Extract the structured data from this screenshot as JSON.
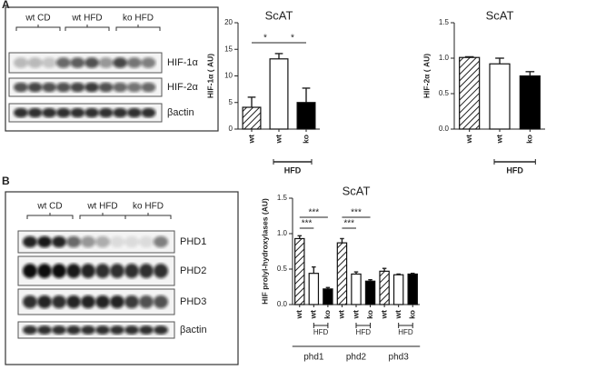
{
  "panel_labels": [
    "A",
    "B"
  ],
  "blots": [
    {
      "groups": [
        "wt CD",
        "wt HFD",
        "ko HFD"
      ],
      "rows": [
        "HIF-1α",
        "HIF-2α",
        "βactin"
      ]
    },
    {
      "groups": [
        "wt CD",
        "wt HFD",
        "ko HFD"
      ],
      "rows": [
        "PHD1",
        "PHD2",
        "PHD3",
        "βactin"
      ]
    }
  ],
  "chart_data": [
    {
      "type": "bar",
      "title": "ScAT",
      "y_label": "HIF-1α ( AU)",
      "categories": [
        "wt",
        "wt",
        "ko"
      ],
      "values": [
        4.1,
        13.2,
        5.0
      ],
      "errors": [
        1.9,
        1.0,
        2.7
      ],
      "fills": [
        "hatch",
        "white",
        "black"
      ],
      "group_label": "HFD",
      "significance": [
        "*",
        "*"
      ],
      "ylim": [
        0,
        20
      ],
      "yticks": [
        0,
        5,
        10,
        15,
        20
      ]
    },
    {
      "type": "bar",
      "title": "ScAT",
      "y_label": "HIF-2α ( AU)",
      "categories": [
        "wt",
        "wt",
        "ko"
      ],
      "values": [
        1.01,
        0.92,
        0.75
      ],
      "errors": [
        0.01,
        0.08,
        0.06
      ],
      "fills": [
        "hatch",
        "white",
        "black"
      ],
      "group_label": "HFD",
      "significance": [],
      "ylim": [
        0,
        1.5
      ],
      "yticks": [
        {
          "value": 0,
          "label": "0.0"
        },
        {
          "value": 0.5,
          "label": "0.5"
        },
        {
          "value": 1,
          "label": "1.0"
        },
        {
          "value": 1.5,
          "label": "1.5"
        }
      ]
    },
    {
      "type": "bar",
      "title": "ScAT",
      "y_label": "HIF prolyl-hydroxylases (AU)",
      "categories": [
        "wt",
        "wt",
        "ko",
        "wt",
        "wt",
        "ko",
        "wt",
        "wt",
        "ko"
      ],
      "values": [
        0.93,
        0.44,
        0.22,
        0.87,
        0.43,
        0.33,
        0.47,
        0.42,
        0.43
      ],
      "errors": [
        0.04,
        0.09,
        0.02,
        0.06,
        0.03,
        0.02,
        0.04,
        0.01,
        0.01
      ],
      "fills": [
        "hatch",
        "white",
        "black",
        "hatch",
        "white",
        "black",
        "hatch",
        "white",
        "black"
      ],
      "groups": [
        "phd1",
        "phd2",
        "phd3"
      ],
      "group_labels": [
        "HFD",
        "HFD",
        "HFD"
      ],
      "significance": [
        "***",
        "***",
        "***",
        "***"
      ],
      "ylim": [
        0,
        1.5
      ],
      "yticks": [
        {
          "value": 0,
          "label": "0.0"
        },
        {
          "value": 0.5,
          "label": "0.5"
        },
        {
          "value": 1,
          "label": "1.0"
        },
        {
          "value": 1.5,
          "label": "1.5"
        }
      ]
    }
  ]
}
